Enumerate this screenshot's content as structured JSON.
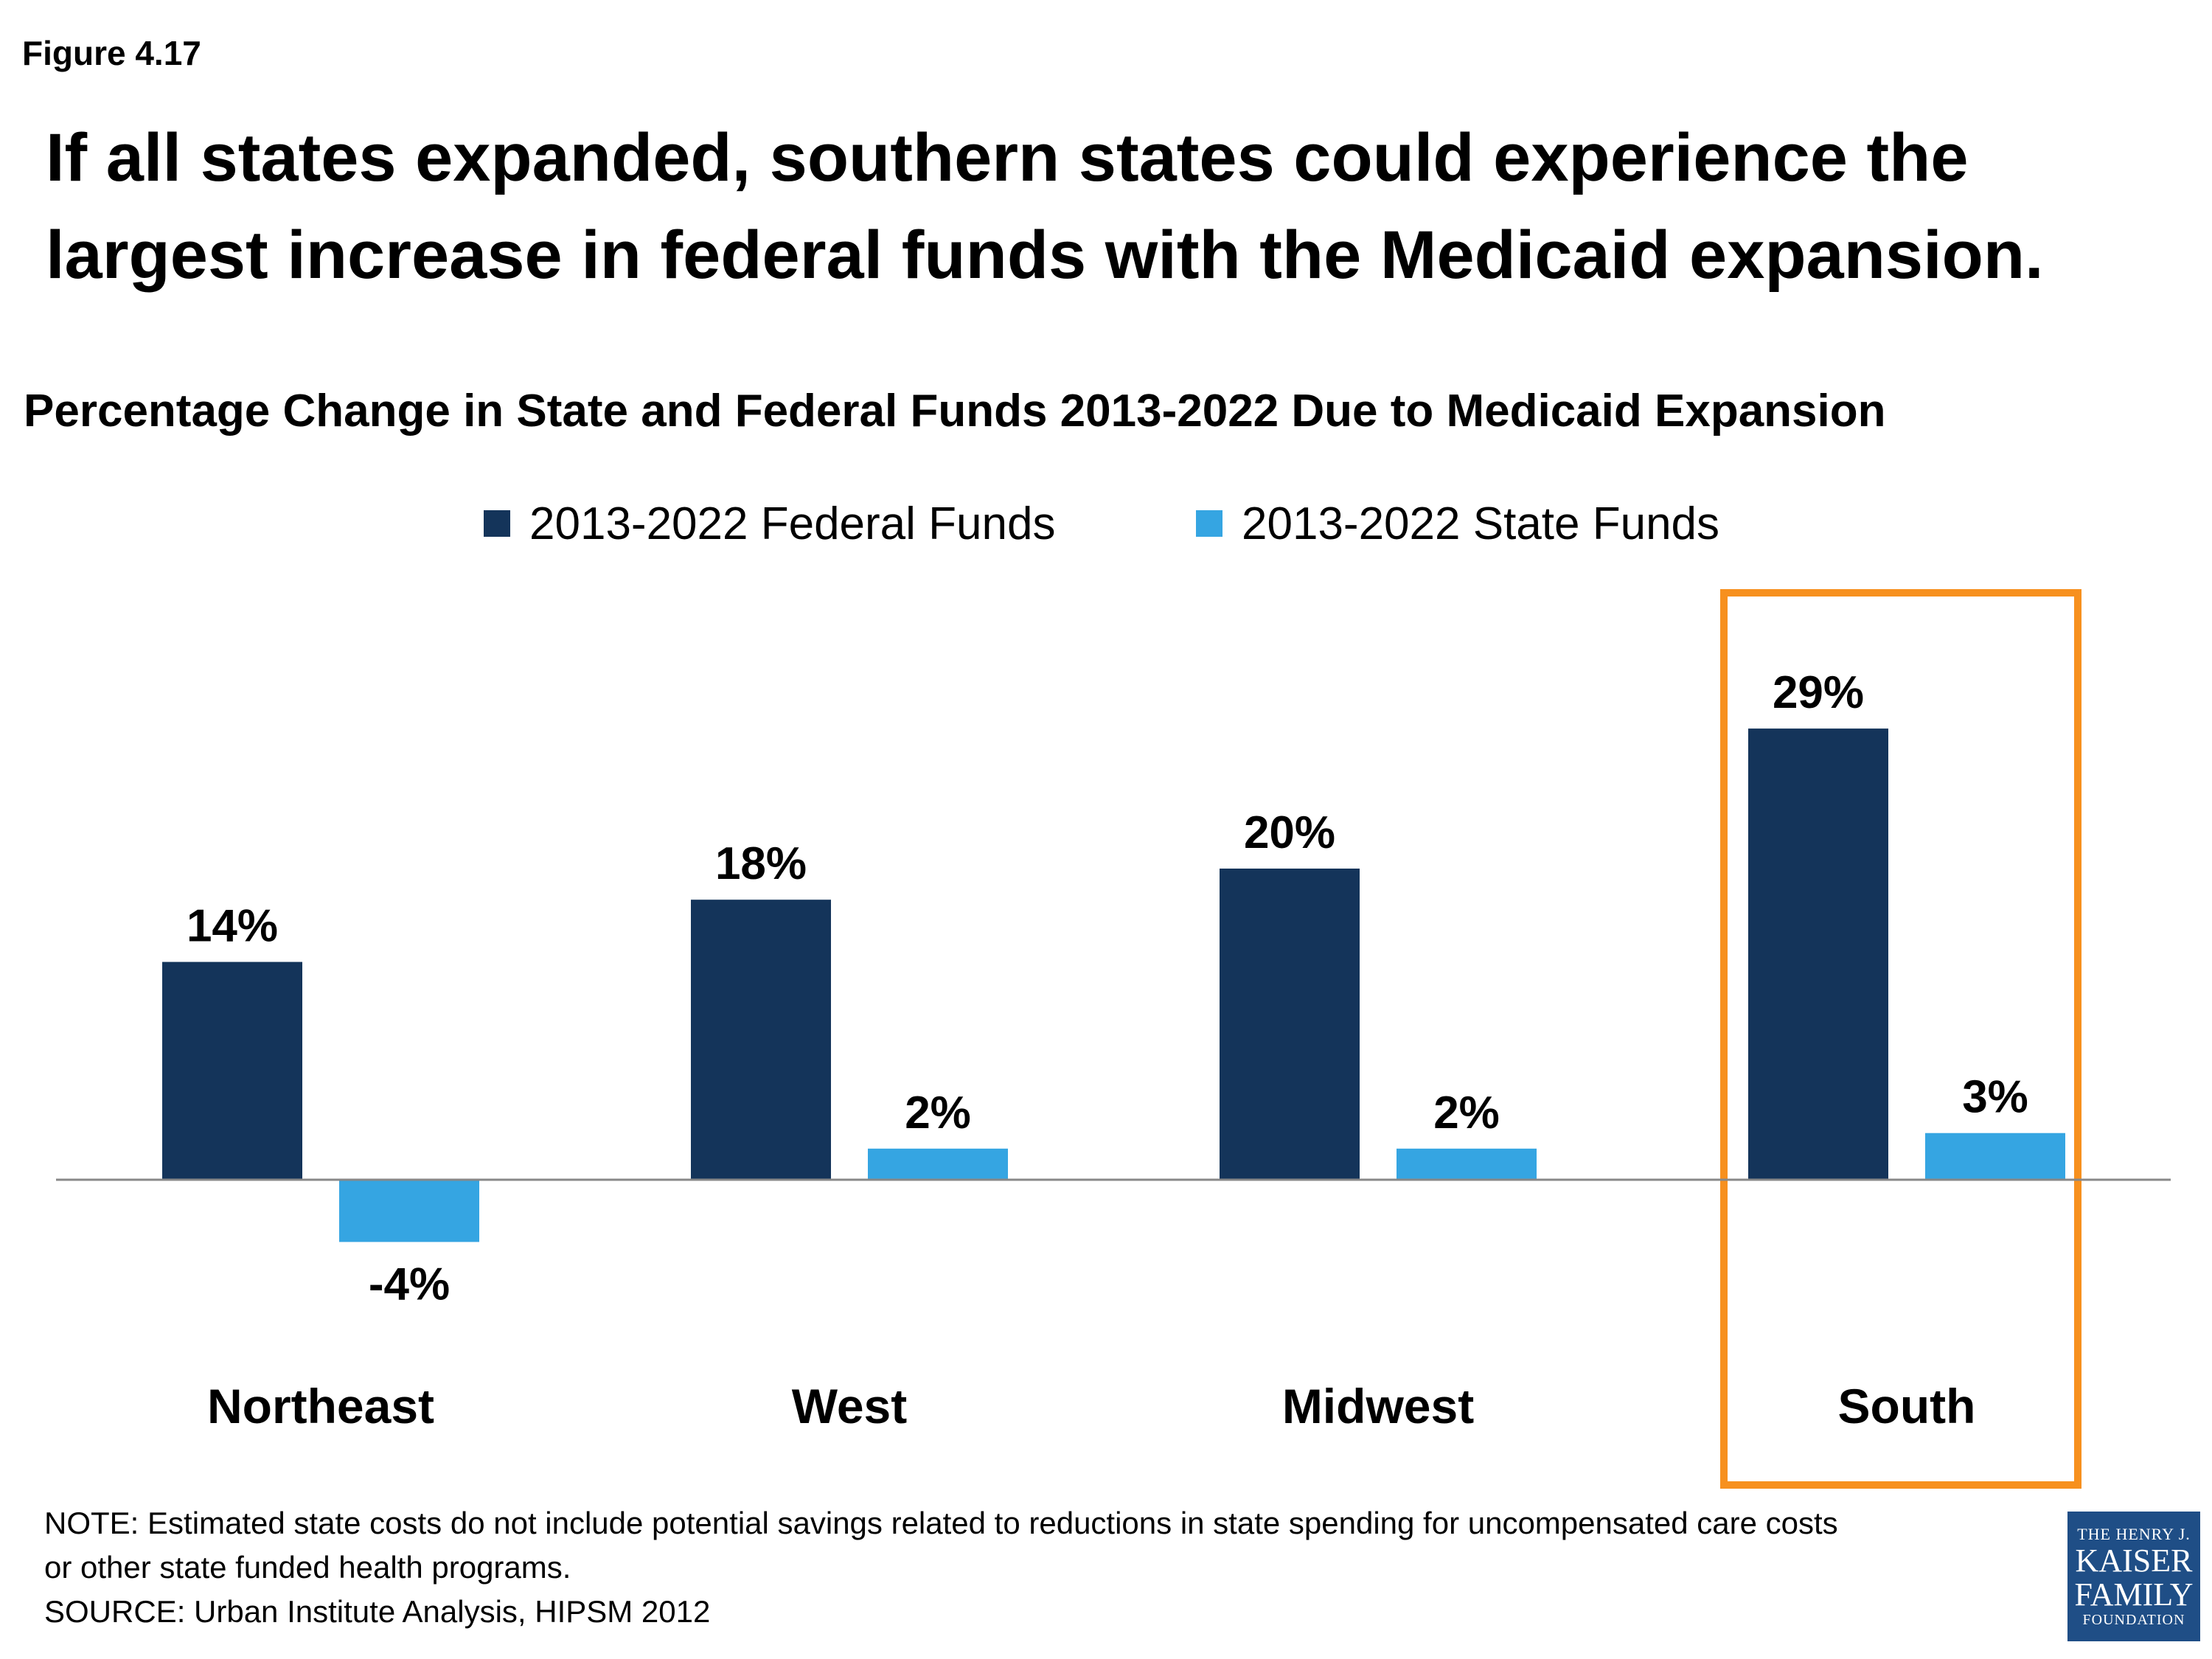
{
  "figure_label": "Figure 4.17",
  "headline": "If all states expanded, southern states could experience the largest increase in federal funds with the Medicaid expansion.",
  "chart_data": {
    "type": "bar",
    "title": "Percentage Change in State and Federal Funds 2013-2022 Due to Medicaid Expansion",
    "categories": [
      "Northeast",
      "West",
      "Midwest",
      "South"
    ],
    "series": [
      {
        "name": "2013-2022 Federal Funds",
        "values": [
          14,
          18,
          20,
          29
        ],
        "labels": [
          "14%",
          "18%",
          "20%",
          "29%"
        ],
        "color": "#14345a"
      },
      {
        "name": "2013-2022 State Funds",
        "values": [
          -4,
          2,
          2,
          3
        ],
        "labels": [
          "-4%",
          "2%",
          "2%",
          "3%"
        ],
        "color": "#35a5e2"
      }
    ],
    "highlight_category": "South",
    "highlight_color": "#f7901e",
    "axis_line_color": "#888888",
    "legend_position": "top-center",
    "grid": false
  },
  "note": {
    "line1": "NOTE:  Estimated state costs do not include potential savings related to reductions in state spending for uncompensated care costs",
    "line2": "or other state funded health programs.",
    "source": "SOURCE: Urban Institute Analysis, HIPSM 2012"
  },
  "logo": {
    "line1": "THE HENRY J.",
    "line2": "KAISER",
    "line3": "FAMILY",
    "line4": "FOUNDATION"
  }
}
